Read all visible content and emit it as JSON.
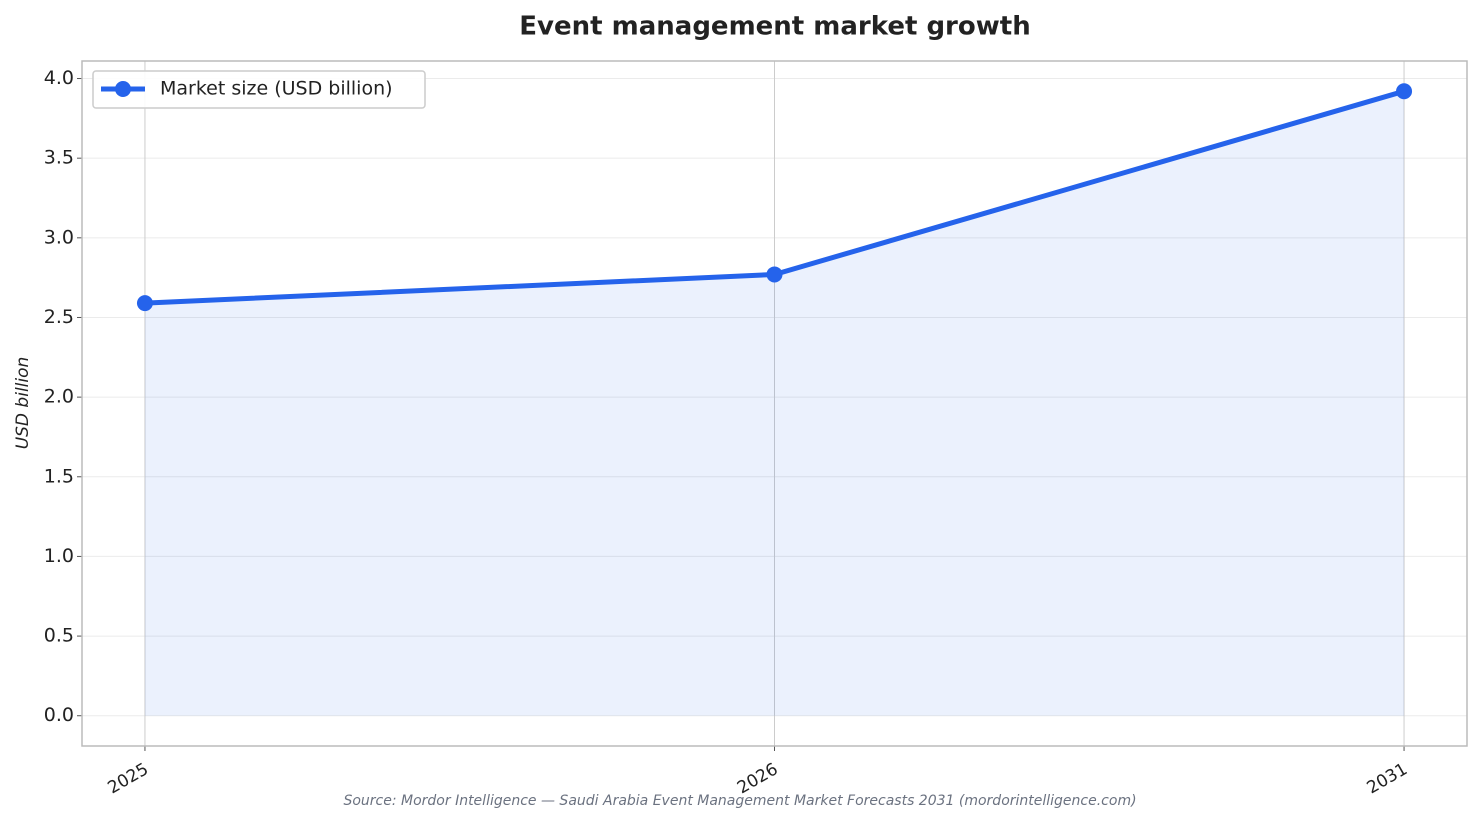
{
  "chart_data": {
    "type": "line",
    "title": "Event management market growth",
    "ylabel": "USD billion",
    "source": "Source: Mordor Intelligence — Saudi Arabia Event Management Market Forecasts 2031 (mordorintelligence.com)",
    "categories": [
      "2025",
      "2026",
      "2031"
    ],
    "series": [
      {
        "name": "Market size (USD billion)",
        "color": "#2563eb",
        "values": [
          2.59,
          2.77,
          3.92
        ]
      }
    ],
    "ylim": [
      -0.19,
      4.11
    ],
    "yticks": [
      {
        "value": 0,
        "label": "0.0"
      },
      0.5,
      {
        "value": 1,
        "label": "1.0"
      },
      1.5,
      {
        "value": 2,
        "label": "2.0"
      },
      2.5,
      {
        "value": 3,
        "label": "3.0"
      },
      3.5,
      {
        "value": 4,
        "label": "4.0"
      }
    ],
    "grid": true,
    "legend": "upper left",
    "area_fill": true
  }
}
